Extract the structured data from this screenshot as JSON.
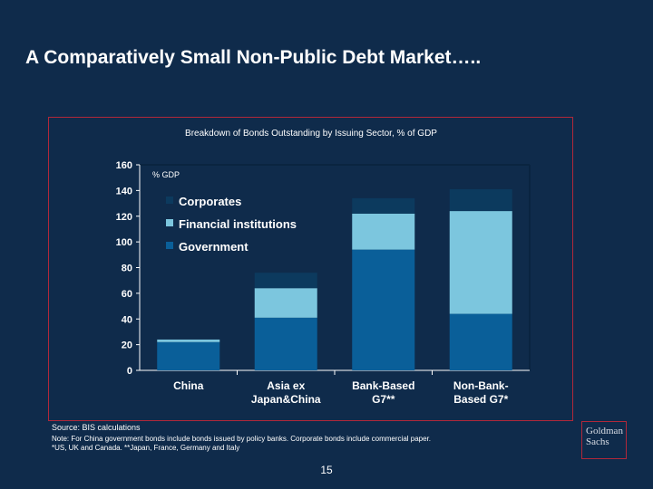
{
  "slide": {
    "title": "A Comparatively Small Non-Public Debt Market…..",
    "source": "Source:  BIS calculations",
    "note_line1": "Note: For China government bonds include bonds issued by policy banks.  Corporate bonds include commercial paper.",
    "note_line2": "*US, UK and Canada.    **Japan, France, Germany and Italy",
    "page_number": "15",
    "logo_line1": "Goldman",
    "logo_line2": "Sachs"
  },
  "colors": {
    "background": "#0f2b4b",
    "frame": "#b0283a",
    "corporates": "#0c3a5e",
    "financial_institutions": "#7cc6de",
    "government": "#0a5f99"
  },
  "chart_data": {
    "type": "bar",
    "stacked": true,
    "title": "Breakdown of Bonds Outstanding by Issuing Sector, % of GDP",
    "ylabel": "% GDP",
    "ylim": [
      0,
      160
    ],
    "yticks": [
      0,
      20,
      40,
      60,
      80,
      100,
      120,
      140,
      160
    ],
    "categories": [
      "China",
      "Asia ex Japan&China",
      "Bank-Based G7**",
      "Non-Bank-Based G7*"
    ],
    "category_labels": [
      [
        "China"
      ],
      [
        "Asia ex",
        "Japan&China"
      ],
      [
        "Bank-Based",
        "G7**"
      ],
      [
        "Non-Bank-",
        "Based G7*"
      ]
    ],
    "legend_position": "top-left",
    "series": [
      {
        "name": "Government",
        "color": "#0a5f99",
        "values": [
          22,
          41,
          94,
          44
        ]
      },
      {
        "name": "Financial institutions",
        "color": "#7cc6de",
        "values": [
          2,
          23,
          28,
          80
        ]
      },
      {
        "name": "Corporates",
        "color": "#0c3a5e",
        "values": [
          0,
          12,
          12,
          17
        ]
      }
    ],
    "legend_order": [
      "Corporates",
      "Financial institutions",
      "Government"
    ]
  }
}
